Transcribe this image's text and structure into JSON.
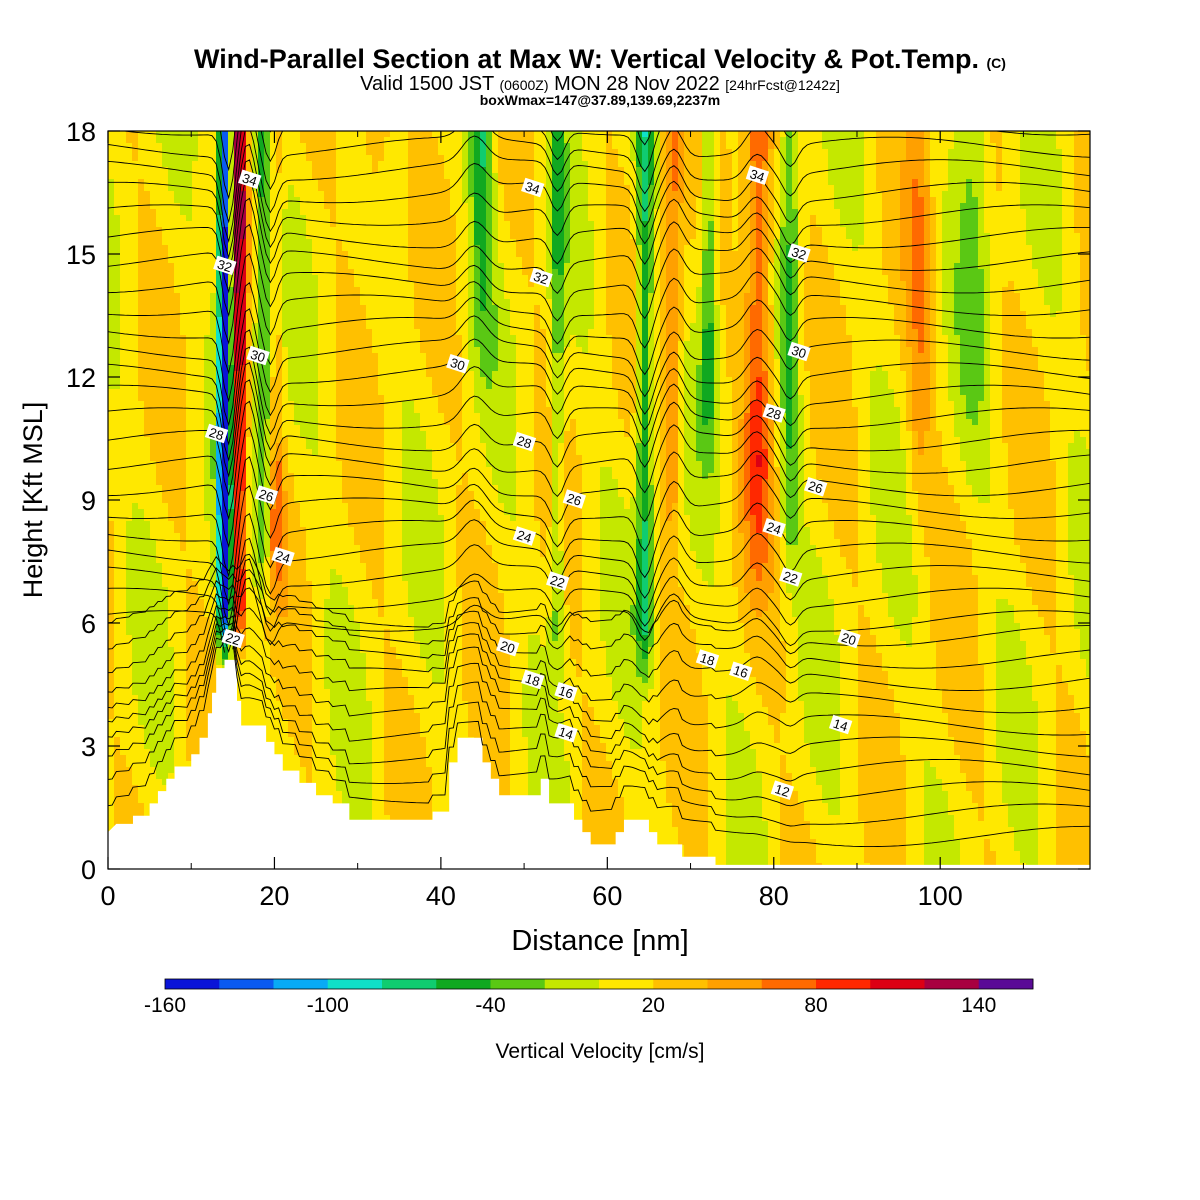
{
  "header": {
    "title_main": "Wind-Parallel Section at Max W: Vertical Velocity & Pot.Temp.",
    "title_mark": "(C)",
    "valid_a": "Valid 1500 JST",
    "valid_b": "(0600Z)",
    "valid_c": "MON 28 Nov 2022",
    "valid_d": "[24hrFcst@1242z]",
    "box_info": "boxWmax=147@37.89,139.69,2237m"
  },
  "chart_data": {
    "type": "heatmap",
    "xlabel": "Distance [nm]",
    "ylabel": "Height [Kft MSL]",
    "xlim": [
      0,
      118
    ],
    "ylim": [
      0,
      18
    ],
    "x_ticks": [
      0,
      20,
      40,
      60,
      80,
      100
    ],
    "y_ticks": [
      0,
      3,
      6,
      9,
      12,
      15,
      18
    ],
    "colorbar": {
      "label": "Vertical Velocity [cm/s]",
      "min": -160,
      "max": 160,
      "step": 20,
      "tick_labels": [
        -160,
        -100,
        -40,
        20,
        80,
        140
      ],
      "colors": [
        "#0a14d8",
        "#0a5af0",
        "#08aaf5",
        "#10e0c8",
        "#10cc70",
        "#10a820",
        "#5ac814",
        "#c4e800",
        "#ffe800",
        "#ffc000",
        "#ffa000",
        "#ff6a00",
        "#ff2800",
        "#dc0014",
        "#a80040",
        "#5a0a96"
      ]
    },
    "terrain_kft": [
      [
        0,
        0.9
      ],
      [
        1,
        1.1
      ],
      [
        3,
        1.1
      ],
      [
        3,
        1.3
      ],
      [
        5,
        1.3
      ],
      [
        5,
        1.6
      ],
      [
        6,
        1.6
      ],
      [
        6,
        1.9
      ],
      [
        7,
        1.9
      ],
      [
        7,
        2.2
      ],
      [
        8,
        2.2
      ],
      [
        8,
        2.5
      ],
      [
        10,
        2.5
      ],
      [
        10,
        2.8
      ],
      [
        11,
        2.8
      ],
      [
        11,
        3.2
      ],
      [
        12,
        3.2
      ],
      [
        12,
        3.8
      ],
      [
        12.5,
        3.8
      ],
      [
        12.5,
        4.3
      ],
      [
        13,
        4.3
      ],
      [
        13,
        4.9
      ],
      [
        14,
        4.9
      ],
      [
        14,
        5.1
      ],
      [
        15.5,
        5.1
      ],
      [
        15.5,
        4.1
      ],
      [
        16,
        4.1
      ],
      [
        16,
        3.5
      ],
      [
        19,
        3.5
      ],
      [
        19,
        3.1
      ],
      [
        20,
        3.1
      ],
      [
        20,
        2.8
      ],
      [
        21,
        2.8
      ],
      [
        21,
        2.4
      ],
      [
        23,
        2.4
      ],
      [
        23,
        2.1
      ],
      [
        25,
        2.1
      ],
      [
        25,
        1.8
      ],
      [
        27,
        1.8
      ],
      [
        27,
        1.6
      ],
      [
        29,
        1.6
      ],
      [
        29,
        1.2
      ],
      [
        39,
        1.2
      ],
      [
        39,
        1.4
      ],
      [
        41,
        1.4
      ],
      [
        41,
        2.6
      ],
      [
        42,
        2.6
      ],
      [
        42,
        3.2
      ],
      [
        45,
        3.2
      ],
      [
        45,
        2.6
      ],
      [
        46,
        2.6
      ],
      [
        46,
        2.2
      ],
      [
        47,
        2.2
      ],
      [
        47,
        1.8
      ],
      [
        52,
        1.8
      ],
      [
        52,
        2.2
      ],
      [
        53,
        2.2
      ],
      [
        53,
        1.6
      ],
      [
        56,
        1.6
      ],
      [
        56,
        1.2
      ],
      [
        57,
        1.2
      ],
      [
        57,
        0.9
      ],
      [
        58,
        0.9
      ],
      [
        58,
        0.6
      ],
      [
        61,
        0.6
      ],
      [
        61,
        0.9
      ],
      [
        62,
        0.9
      ],
      [
        62,
        1.2
      ],
      [
        65,
        1.2
      ],
      [
        65,
        0.9
      ],
      [
        66,
        0.9
      ],
      [
        66,
        0.6
      ],
      [
        69,
        0.6
      ],
      [
        69,
        0.3
      ],
      [
        73,
        0.3
      ],
      [
        73,
        0.1
      ],
      [
        76,
        0.1
      ],
      [
        76,
        0.1
      ],
      [
        118,
        0.1
      ]
    ],
    "theta_contours": [
      {
        "label": "12",
        "label_at": [
          81,
          1.9
        ]
      },
      {
        "label": "14",
        "label_at": [
          55,
          3.3
        ]
      },
      {
        "label": "14",
        "label_at": [
          88,
          3.5
        ]
      },
      {
        "label": "16",
        "label_at": [
          55,
          4.3
        ]
      },
      {
        "label": "16",
        "label_at": [
          76,
          4.8
        ]
      },
      {
        "label": "18",
        "label_at": [
          51,
          4.6
        ]
      },
      {
        "label": "18",
        "label_at": [
          72,
          5.1
        ]
      },
      {
        "label": "20",
        "label_at": [
          48,
          5.4
        ]
      },
      {
        "label": "20",
        "label_at": [
          89,
          5.6
        ]
      },
      {
        "label": "22",
        "label_at": [
          15,
          5.6
        ]
      },
      {
        "label": "22",
        "label_at": [
          54,
          7.0
        ]
      },
      {
        "label": "22",
        "label_at": [
          82,
          7.1
        ]
      },
      {
        "label": "24",
        "label_at": [
          21,
          7.6
        ]
      },
      {
        "label": "24",
        "label_at": [
          50,
          8.1
        ]
      },
      {
        "label": "24",
        "label_at": [
          80,
          8.3
        ]
      },
      {
        "label": "26",
        "label_at": [
          19,
          9.1
        ]
      },
      {
        "label": "26",
        "label_at": [
          56,
          9.0
        ]
      },
      {
        "label": "26",
        "label_at": [
          85,
          9.3
        ]
      },
      {
        "label": "28",
        "label_at": [
          13,
          10.6
        ]
      },
      {
        "label": "28",
        "label_at": [
          50,
          10.4
        ]
      },
      {
        "label": "28",
        "label_at": [
          80,
          11.1
        ]
      },
      {
        "label": "30",
        "label_at": [
          18,
          12.5
        ]
      },
      {
        "label": "30",
        "label_at": [
          42,
          12.3
        ]
      },
      {
        "label": "30",
        "label_at": [
          83,
          12.6
        ]
      },
      {
        "label": "32",
        "label_at": [
          14,
          14.7
        ]
      },
      {
        "label": "32",
        "label_at": [
          52,
          14.4
        ]
      },
      {
        "label": "32",
        "label_at": [
          83,
          15.0
        ]
      },
      {
        "label": "34",
        "label_at": [
          17,
          16.8
        ]
      },
      {
        "label": "34",
        "label_at": [
          51,
          16.6
        ]
      },
      {
        "label": "34",
        "label_at": [
          78,
          16.9
        ]
      }
    ]
  }
}
